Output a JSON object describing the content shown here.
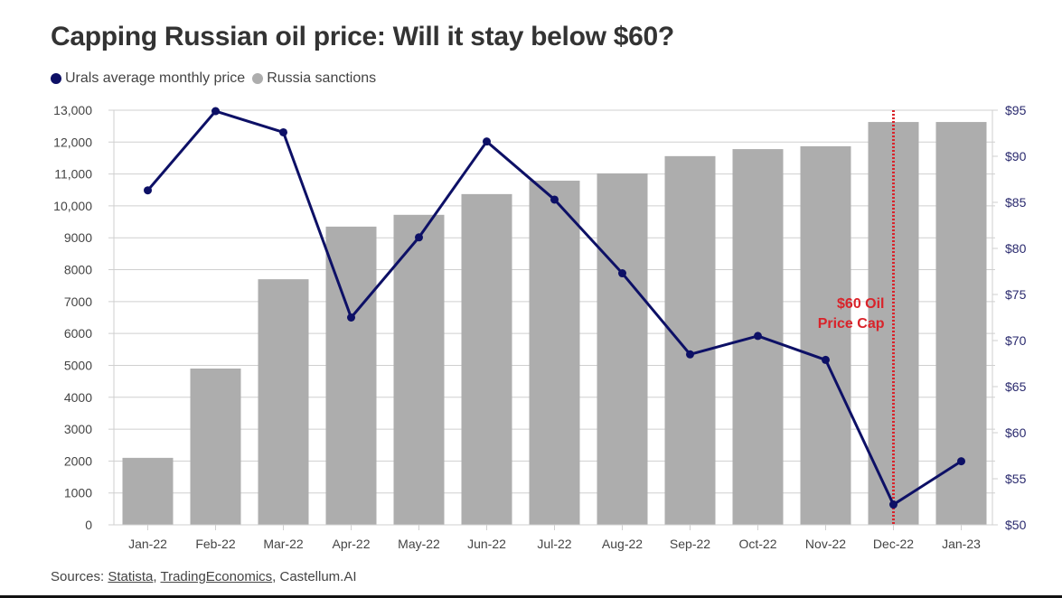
{
  "chart_data": {
    "type": "bar+line",
    "title": "Capping Russian oil price: Will it stay below $60?",
    "categories": [
      "Jan-22",
      "Feb-22",
      "Mar-22",
      "Apr-22",
      "May-22",
      "Jun-22",
      "Jul-22",
      "Aug-22",
      "Sep-22",
      "Oct-22",
      "Nov-22",
      "Dec-22",
      "Jan-23"
    ],
    "series": [
      {
        "name": "Russia sanctions",
        "type": "bar",
        "axis": "left",
        "color": "#adadad",
        "values": [
          2100,
          4900,
          7700,
          9350,
          9720,
          10370,
          10790,
          11020,
          11560,
          11780,
          11870,
          12630,
          12630
        ]
      },
      {
        "name": "Urals average monthly price",
        "type": "line",
        "axis": "right",
        "color": "#0d1066",
        "values": [
          86.3,
          94.9,
          92.6,
          72.5,
          81.2,
          91.6,
          85.3,
          77.3,
          68.5,
          70.5,
          67.9,
          52.2,
          56.9
        ]
      }
    ],
    "left_axis": {
      "range": [
        0,
        13000
      ],
      "ticks": [
        "0",
        "1000",
        "2000",
        "3000",
        "4000",
        "5000",
        "6000",
        "7000",
        "8000",
        "9000",
        "10,000",
        "11,000",
        "12,000",
        "13,000"
      ]
    },
    "right_axis": {
      "range": [
        50,
        95
      ],
      "ticks": [
        "$50",
        "$55",
        "$60",
        "$65",
        "$70",
        "$75",
        "$80",
        "$85",
        "$90",
        "$95"
      ]
    },
    "annotation": {
      "category": "Dec-22",
      "line1": "$60 Oil",
      "line2": "Price Cap",
      "color": "#d9232a"
    },
    "legend_position": "top-left",
    "grid": true
  },
  "footer": {
    "prefix": "Sources: ",
    "link1": "Statista",
    "sep1": ", ",
    "link2": "TradingEconomics",
    "suffix": ", Castellum.AI"
  }
}
